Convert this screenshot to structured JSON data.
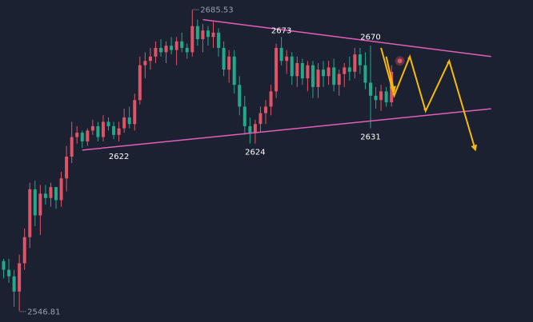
{
  "chart_data": {
    "type": "candlestick",
    "title": "",
    "xlabel": "",
    "ylabel": "",
    "ylim": [
      2542,
      2690
    ],
    "grid": false,
    "legend": "none",
    "colors": {
      "background": "#1b2130",
      "up": "#e05468",
      "down": "#22a88a",
      "trendline": "#e05fb8",
      "forecast": "#f7b90c",
      "marker": "#e05468"
    },
    "extremes": {
      "high": {
        "value": 2685.53,
        "label": "2685.53",
        "bar": 36
      },
      "low": {
        "value": 2546.81,
        "label": "2546.81",
        "bar": 3
      }
    },
    "annotations": [
      {
        "label": "2673",
        "value": 2673,
        "bar": 53
      },
      {
        "label": "2670",
        "value": 2670,
        "bar": 70
      },
      {
        "label": "2622",
        "value": 2622,
        "bar": 22
      },
      {
        "label": "2624",
        "value": 2624,
        "bar": 48
      },
      {
        "label": "2631",
        "value": 2631,
        "bar": 70
      }
    ],
    "trendlines": [
      {
        "name": "upper",
        "from": {
          "bar": 38,
          "value": 2681
        },
        "to": {
          "bar": 93,
          "value": 2664
        }
      },
      {
        "name": "lower",
        "from": {
          "bar": 15,
          "value": 2621
        },
        "to": {
          "bar": 93,
          "value": 2640
        }
      }
    ],
    "forecast_path": [
      {
        "bar": 72,
        "value": 2668
      },
      {
        "bar": 74.5,
        "value": 2646
      },
      {
        "bar": 77.5,
        "value": 2664
      },
      {
        "bar": 80.5,
        "value": 2639
      },
      {
        "bar": 85,
        "value": 2662
      },
      {
        "bar": 90,
        "value": 2621
      }
    ],
    "forecast_branch": [
      {
        "bar": 73,
        "value": 2664
      },
      {
        "bar": 74.5,
        "value": 2648
      }
    ],
    "current_marker": {
      "bar": 75.6,
      "value": 2662
    },
    "ohlc": [
      [
        2570,
        2571,
        2562,
        2566
      ],
      [
        2566,
        2571,
        2560,
        2563
      ],
      [
        2563,
        2566,
        2549,
        2556
      ],
      [
        2556,
        2573,
        2547,
        2569
      ],
      [
        2569,
        2585,
        2566,
        2581
      ],
      [
        2581,
        2606,
        2576,
        2603
      ],
      [
        2603,
        2607,
        2586,
        2591
      ],
      [
        2591,
        2605,
        2582,
        2601
      ],
      [
        2601,
        2605,
        2596,
        2599
      ],
      [
        2599,
        2606,
        2595,
        2604
      ],
      [
        2604,
        2604,
        2594,
        2598
      ],
      [
        2598,
        2611,
        2595,
        2608
      ],
      [
        2608,
        2623,
        2602,
        2618
      ],
      [
        2618,
        2634,
        2615,
        2627
      ],
      [
        2627,
        2632,
        2624,
        2629
      ],
      [
        2629,
        2630,
        2622,
        2625
      ],
      [
        2625,
        2631,
        2623,
        2630
      ],
      [
        2630,
        2635,
        2628,
        2632
      ],
      [
        2632,
        2634,
        2625,
        2627
      ],
      [
        2627,
        2637,
        2625,
        2634
      ],
      [
        2634,
        2636,
        2630,
        2632
      ],
      [
        2632,
        2634,
        2626,
        2628
      ],
      [
        2628,
        2634,
        2625,
        2631
      ],
      [
        2631,
        2640,
        2629,
        2636
      ],
      [
        2636,
        2641,
        2631,
        2633
      ],
      [
        2633,
        2647,
        2630,
        2644
      ],
      [
        2644,
        2664,
        2642,
        2660
      ],
      [
        2660,
        2666,
        2654,
        2662
      ],
      [
        2662,
        2668,
        2658,
        2664
      ],
      [
        2664,
        2671,
        2661,
        2668
      ],
      [
        2668,
        2672,
        2664,
        2666
      ],
      [
        2666,
        2671,
        2661,
        2669
      ],
      [
        2669,
        2673,
        2665,
        2667
      ],
      [
        2667,
        2673,
        2660,
        2671
      ],
      [
        2671,
        2675,
        2666,
        2668
      ],
      [
        2668,
        2670,
        2663,
        2666
      ],
      [
        2666,
        2685.53,
        2664,
        2678
      ],
      [
        2678,
        2681,
        2669,
        2672
      ],
      [
        2672,
        2679,
        2666,
        2676
      ],
      [
        2676,
        2678,
        2669,
        2673
      ],
      [
        2673,
        2680,
        2668,
        2675
      ],
      [
        2675,
        2677,
        2664,
        2668
      ],
      [
        2668,
        2671,
        2655,
        2658
      ],
      [
        2658,
        2667,
        2652,
        2664
      ],
      [
        2664,
        2667,
        2647,
        2651
      ],
      [
        2651,
        2655,
        2637,
        2641
      ],
      [
        2641,
        2646,
        2628,
        2632
      ],
      [
        2632,
        2636,
        2624,
        2629
      ],
      [
        2629,
        2635,
        2624,
        2633
      ],
      [
        2633,
        2641,
        2629,
        2638
      ],
      [
        2638,
        2644,
        2633,
        2641
      ],
      [
        2641,
        2651,
        2637,
        2648
      ],
      [
        2648,
        2670,
        2645,
        2668
      ],
      [
        2668,
        2673,
        2660,
        2662
      ],
      [
        2662,
        2667,
        2656,
        2664
      ],
      [
        2664,
        2666,
        2651,
        2655
      ],
      [
        2655,
        2664,
        2650,
        2661
      ],
      [
        2661,
        2663,
        2651,
        2654
      ],
      [
        2654,
        2662,
        2648,
        2660
      ],
      [
        2660,
        2662,
        2645,
        2650
      ],
      [
        2650,
        2661,
        2645,
        2658
      ],
      [
        2658,
        2662,
        2650,
        2655
      ],
      [
        2655,
        2662,
        2651,
        2659
      ],
      [
        2659,
        2663,
        2648,
        2651
      ],
      [
        2651,
        2658,
        2646,
        2656
      ],
      [
        2656,
        2661,
        2650,
        2659
      ],
      [
        2659,
        2664,
        2653,
        2657
      ],
      [
        2657,
        2668,
        2654,
        2665
      ],
      [
        2665,
        2668,
        2656,
        2660
      ],
      [
        2660,
        2666,
        2649,
        2652
      ],
      [
        2652,
        2669,
        2631,
        2646
      ],
      [
        2646,
        2650,
        2640,
        2644
      ],
      [
        2644,
        2651,
        2639,
        2648
      ],
      [
        2648,
        2650,
        2641,
        2643
      ],
      [
        2643,
        2660,
        2641,
        2657
      ]
    ]
  }
}
